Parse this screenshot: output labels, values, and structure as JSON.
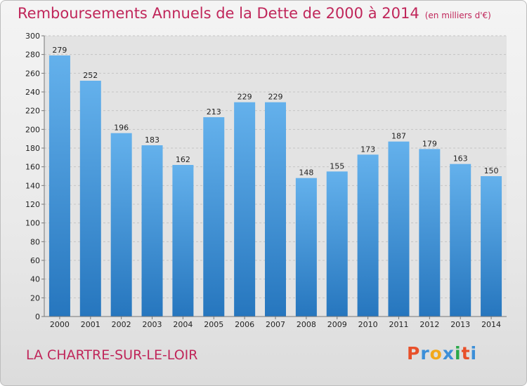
{
  "title": "Remboursements Annuels de la Dette de 2000 à 2014",
  "subtitle": "(en milliers d'€)",
  "commune": "LA CHARTRE-SUR-LE-LOIR",
  "logo": {
    "text": "Proxiti",
    "colors": [
      "#e8502a",
      "#3c8fd8",
      "#f2a81c",
      "#3c8fd8",
      "#2aa84a",
      "#e8502a",
      "#3c8fd8"
    ]
  },
  "colors": {
    "bar_top": "#64b1ec",
    "bar_bottom": "#2676be",
    "title": "#c0265a"
  },
  "chart_data": {
    "type": "bar",
    "title": "Remboursements Annuels de la Dette de 2000 à 2014",
    "categories": [
      "2000",
      "2001",
      "2002",
      "2003",
      "2004",
      "2005",
      "2006",
      "2007",
      "2008",
      "2009",
      "2010",
      "2011",
      "2012",
      "2013",
      "2014"
    ],
    "values": [
      279,
      252,
      196,
      183,
      162,
      213,
      229,
      229,
      148,
      155,
      173,
      187,
      179,
      163,
      150
    ],
    "ylim": [
      0,
      300
    ],
    "yticks": [
      0,
      20,
      40,
      60,
      80,
      100,
      120,
      140,
      160,
      180,
      200,
      220,
      240,
      260,
      280,
      300
    ],
    "grid": true
  }
}
